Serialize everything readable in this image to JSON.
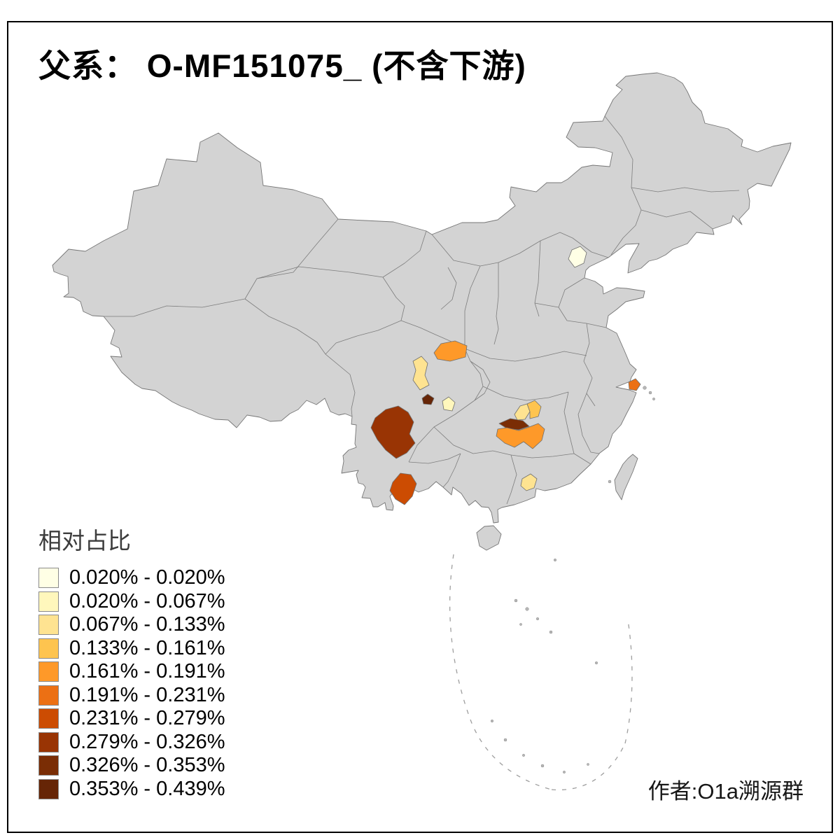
{
  "title": "父系： O-MF151075_ (不含下游)",
  "attribution": "作者:O1a溯源群",
  "legend": {
    "title": "相对占比"
  },
  "map": {
    "base_fill": "#d3d3d3",
    "border_color": "#7d7d7d",
    "sea_background": "#ffffff"
  },
  "chart_data": {
    "type": "choropleth",
    "title": "父系： O-MF151075_ (不含下游)",
    "legend_title": "相对占比",
    "unit": "%",
    "legend_position": "bottom-left",
    "classes": [
      {
        "label": "0.020% - 0.020%",
        "color": "#FFFFE5"
      },
      {
        "label": "0.020% - 0.067%",
        "color": "#FFF7BC"
      },
      {
        "label": "0.067% - 0.133%",
        "color": "#FEE391"
      },
      {
        "label": "0.133% - 0.161%",
        "color": "#FEC44F"
      },
      {
        "label": "0.161% - 0.191%",
        "color": "#FE9929"
      },
      {
        "label": "0.191% - 0.231%",
        "color": "#EC7014"
      },
      {
        "label": "0.231% - 0.279%",
        "color": "#CC4C02"
      },
      {
        "label": "0.279% - 0.326%",
        "color": "#993404"
      },
      {
        "label": "0.326% - 0.353%",
        "color": "#7A2D05"
      },
      {
        "label": "0.353% - 0.439%",
        "color": "#662506"
      }
    ],
    "regions": [
      {
        "id": "beijing-area",
        "name": "Beijing area",
        "class": 1,
        "range": "0.020% - 0.020%"
      },
      {
        "id": "central-sichuan-pale",
        "name": "Central Sichuan patch",
        "class": 2,
        "range": "0.020% - 0.067%"
      },
      {
        "id": "north-sichuan-strip",
        "name": "North Sichuan strip",
        "class": 3,
        "range": "0.067% - 0.133%"
      },
      {
        "id": "hubei-west-patch",
        "name": "South Hubei west patch",
        "class": 3,
        "range": "0.067% - 0.133%"
      },
      {
        "id": "guangdong-patch",
        "name": "Guangdong patch",
        "class": 3,
        "range": "0.067% - 0.133%"
      },
      {
        "id": "hubei-east-patch",
        "name": "South Hubei east patch",
        "class": 4,
        "range": "0.133% - 0.161%"
      },
      {
        "id": "shaanxi-south",
        "name": "South Shaanxi",
        "class": 5,
        "range": "0.161% - 0.191%"
      },
      {
        "id": "hunan-main",
        "name": "Hunan area",
        "class": 5,
        "range": "0.161% - 0.191%"
      },
      {
        "id": "shanghai-area",
        "name": "Shanghai area",
        "class": 6,
        "range": "0.191% - 0.231%"
      },
      {
        "id": "yunnan-south",
        "name": "South Yunnan",
        "class": 7,
        "range": "0.231% - 0.279%"
      },
      {
        "id": "sichuan-west",
        "name": "West Sichuan",
        "class": 8,
        "range": "0.279% - 0.326%"
      },
      {
        "id": "hunan-north-strip",
        "name": "North Hunan strip",
        "class": 9,
        "range": "0.326% - 0.353%"
      },
      {
        "id": "sichuan-small-dark",
        "name": "Small NE Sichuan patch",
        "class": 10,
        "range": "0.353% - 0.439%"
      }
    ]
  }
}
